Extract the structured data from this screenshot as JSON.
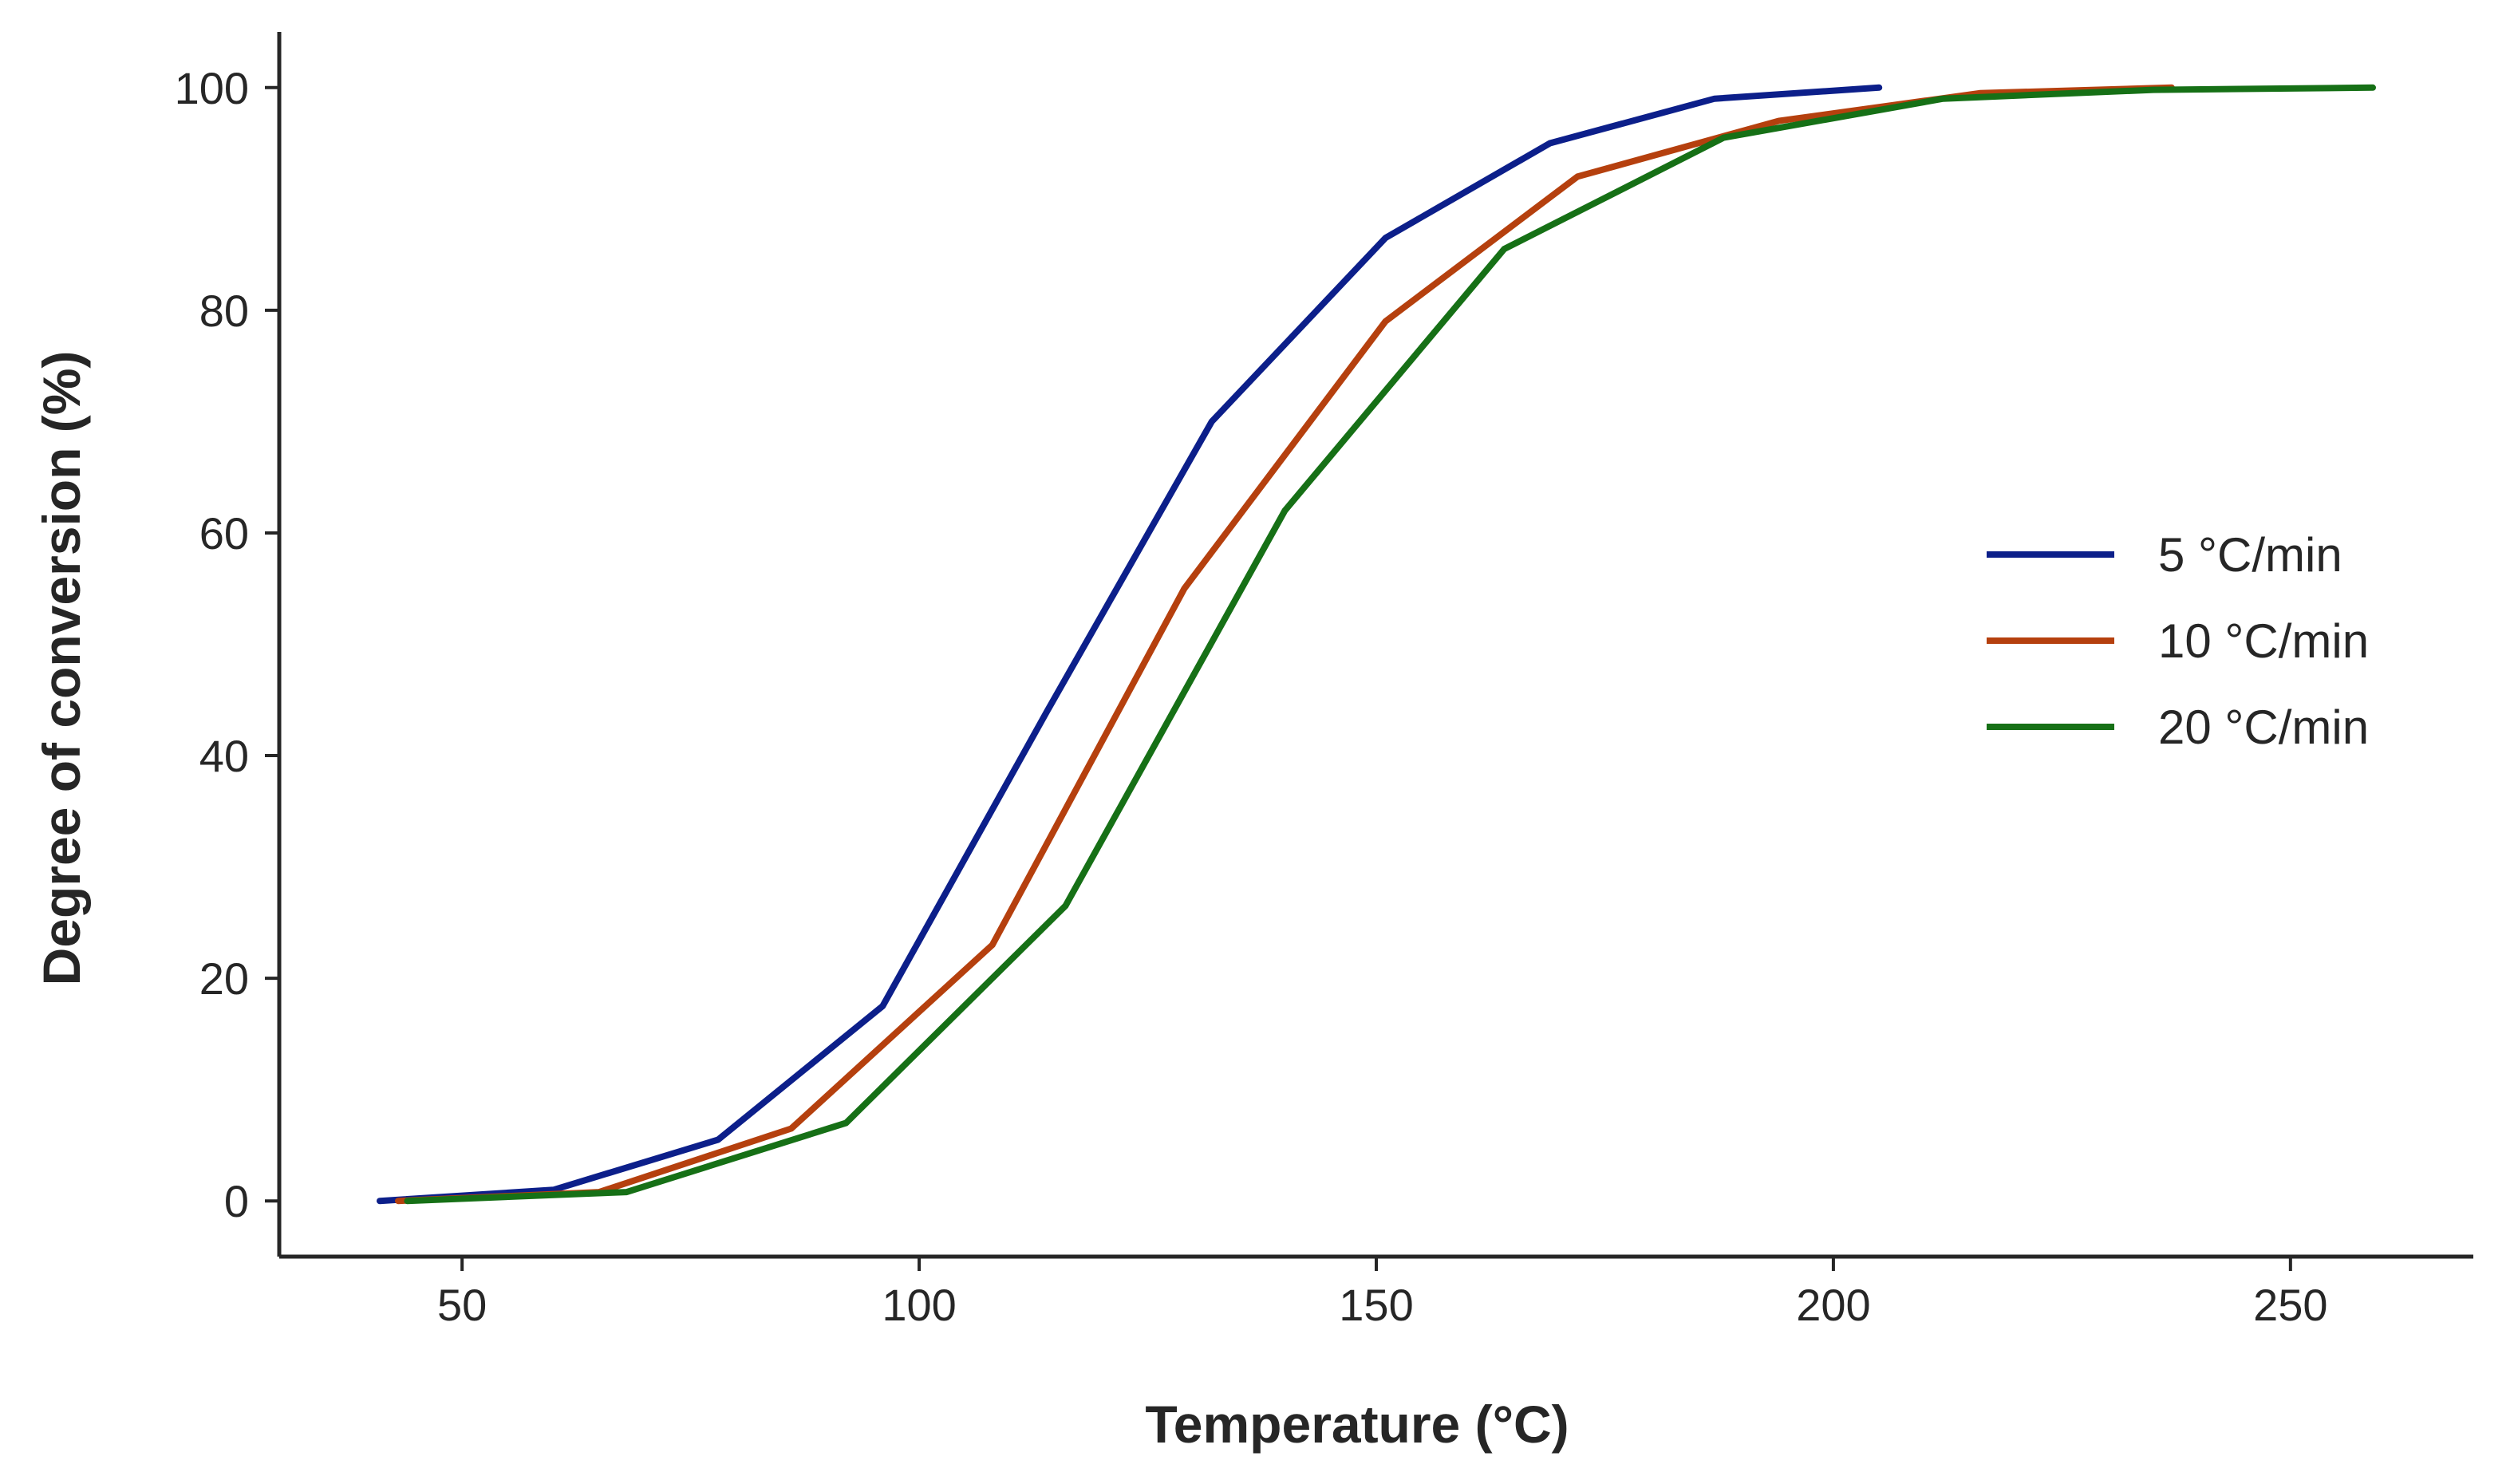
{
  "chart_data": {
    "type": "line",
    "title": "",
    "xlabel": "Temperature (°C)",
    "ylabel": "Degree of conversion (%)",
    "xlim": [
      30,
      270
    ],
    "ylim": [
      -5,
      105
    ],
    "xticks": [
      50,
      100,
      150,
      200,
      250
    ],
    "yticks": [
      0,
      20,
      40,
      60,
      80,
      100
    ],
    "grid": false,
    "legend_position": "center-right",
    "series": [
      {
        "name": "5 °C/min",
        "color": "#0c1f8a",
        "x": [
          41,
          60,
          78,
          96,
          114,
          132,
          151,
          169,
          187,
          205
        ],
        "y": [
          0,
          1,
          5.5,
          17.5,
          44,
          70,
          86.5,
          95,
          99,
          100
        ]
      },
      {
        "name": "10 °C/min",
        "color": "#b5400e",
        "x": [
          43,
          65,
          86,
          108,
          129,
          151,
          172,
          194,
          216,
          237
        ],
        "y": [
          0,
          0.8,
          6.5,
          23,
          55,
          79,
          92,
          97,
          99.5,
          100
        ]
      },
      {
        "name": "20 °C/min",
        "color": "#167016",
        "x": [
          44,
          68,
          92,
          116,
          140,
          164,
          188,
          212,
          235,
          259
        ],
        "y": [
          0,
          0.8,
          7,
          26.5,
          62,
          85.5,
          95.5,
          99,
          99.8,
          100
        ]
      }
    ]
  }
}
